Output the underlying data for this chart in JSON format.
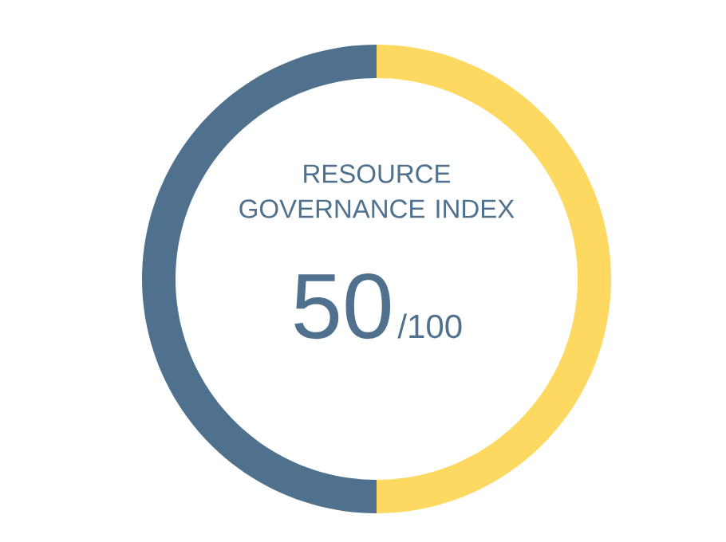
{
  "chart_data": {
    "type": "donut",
    "title": "RESOURCE GOVERNANCE INDEX",
    "categories": [
      null,
      null
    ],
    "values": [
      50,
      50
    ],
    "colors": [
      "#fdd962",
      "#50718e"
    ],
    "annotations": [
      "50",
      "/100"
    ]
  }
}
